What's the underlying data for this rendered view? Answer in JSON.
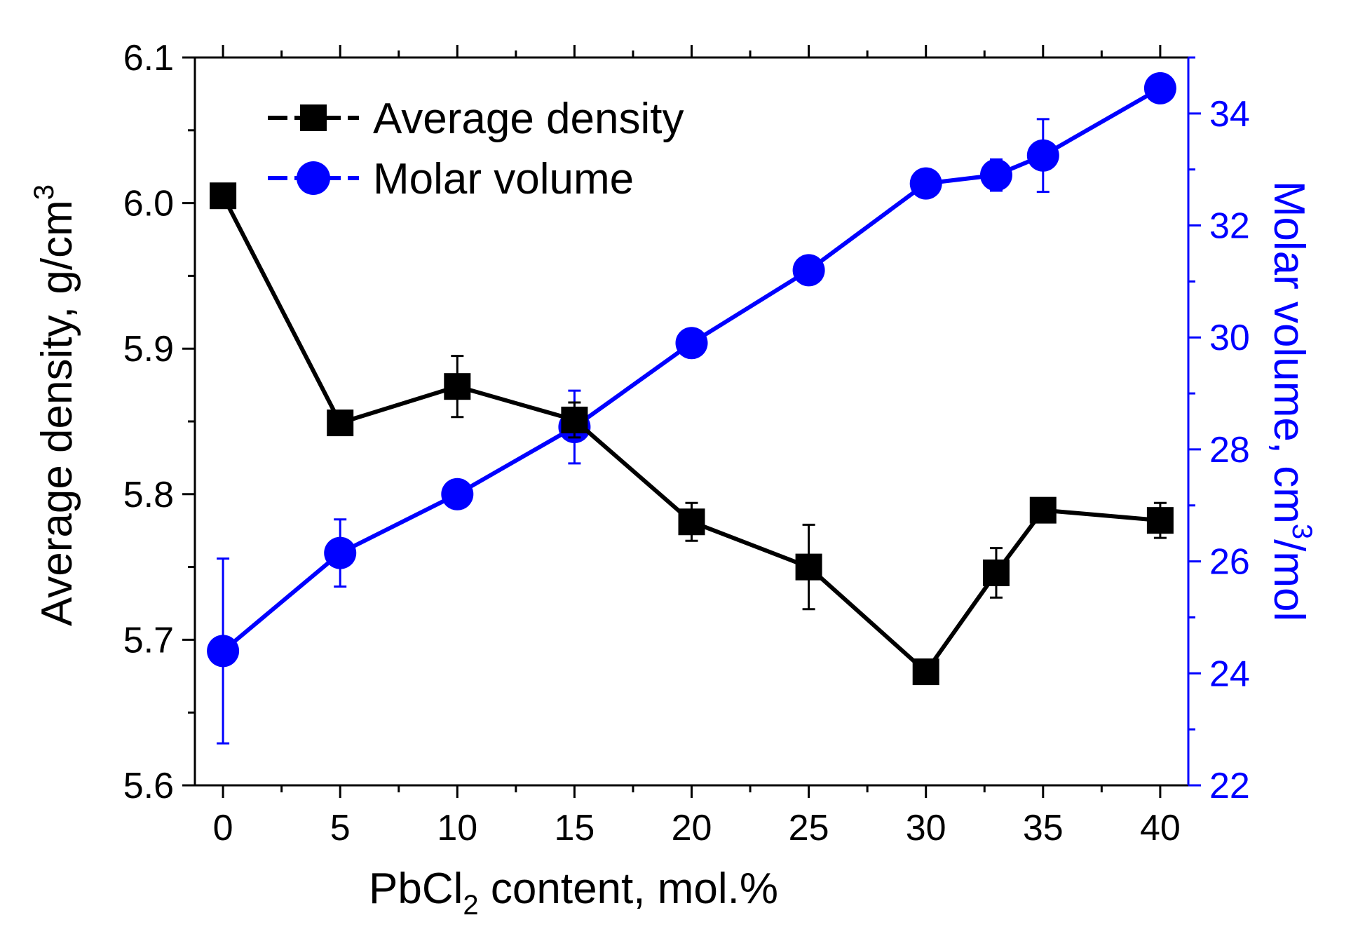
{
  "chart_data": {
    "type": "line",
    "xlabel": {
      "main": "PbCl",
      "sub": "2",
      "rest": " content, mol.%"
    },
    "ylabel_left": {
      "main": "Average density, g/cm",
      "sup": "3"
    },
    "ylabel_right": {
      "main": "Molar volume, cm",
      "sup": "3",
      "rest": "/mol"
    },
    "xlim": [
      -1.2,
      41.2
    ],
    "ylim_left": [
      5.6,
      6.1
    ],
    "ylim_right": [
      22,
      35
    ],
    "x_ticks": [
      0,
      5,
      10,
      15,
      20,
      25,
      30,
      35,
      40
    ],
    "x_tick_labels": [
      "0",
      "5",
      "10",
      "15",
      "20",
      "25",
      "30",
      "35",
      "40"
    ],
    "y_left_ticks": [
      5.6,
      5.7,
      5.8,
      5.9,
      6.0,
      6.1
    ],
    "y_left_tick_labels": [
      "5.6",
      "5.7",
      "5.8",
      "5.9",
      "6.0",
      "6.1"
    ],
    "y_right_ticks": [
      22,
      24,
      26,
      28,
      30,
      32,
      34
    ],
    "y_right_tick_labels": [
      "22",
      "24",
      "26",
      "28",
      "30",
      "32",
      "34"
    ],
    "legend_position": "top-left",
    "colors": {
      "density": "#000000",
      "molar": "#0000ff"
    },
    "series": [
      {
        "name": "Average density",
        "axis": "left",
        "marker": "square",
        "x": [
          0,
          5,
          10,
          15,
          20,
          25,
          30,
          33,
          35,
          40
        ],
        "y": [
          6.005,
          5.849,
          5.874,
          5.851,
          5.781,
          5.75,
          5.678,
          5.746,
          5.789,
          5.782
        ],
        "err": [
          0,
          0,
          0.021,
          0.012,
          0.013,
          0.029,
          0,
          0.017,
          0,
          0.012
        ]
      },
      {
        "name": "Molar volume",
        "axis": "right",
        "marker": "circle",
        "x": [
          0,
          5,
          10,
          15,
          20,
          25,
          30,
          33,
          35,
          40
        ],
        "y": [
          24.4,
          26.15,
          27.2,
          28.4,
          29.9,
          31.2,
          32.75,
          32.9,
          33.25,
          34.45
        ],
        "err": [
          1.65,
          0.6,
          0.25,
          0.65,
          0.2,
          0,
          0.22,
          0.28,
          0.65,
          0
        ]
      }
    ]
  }
}
